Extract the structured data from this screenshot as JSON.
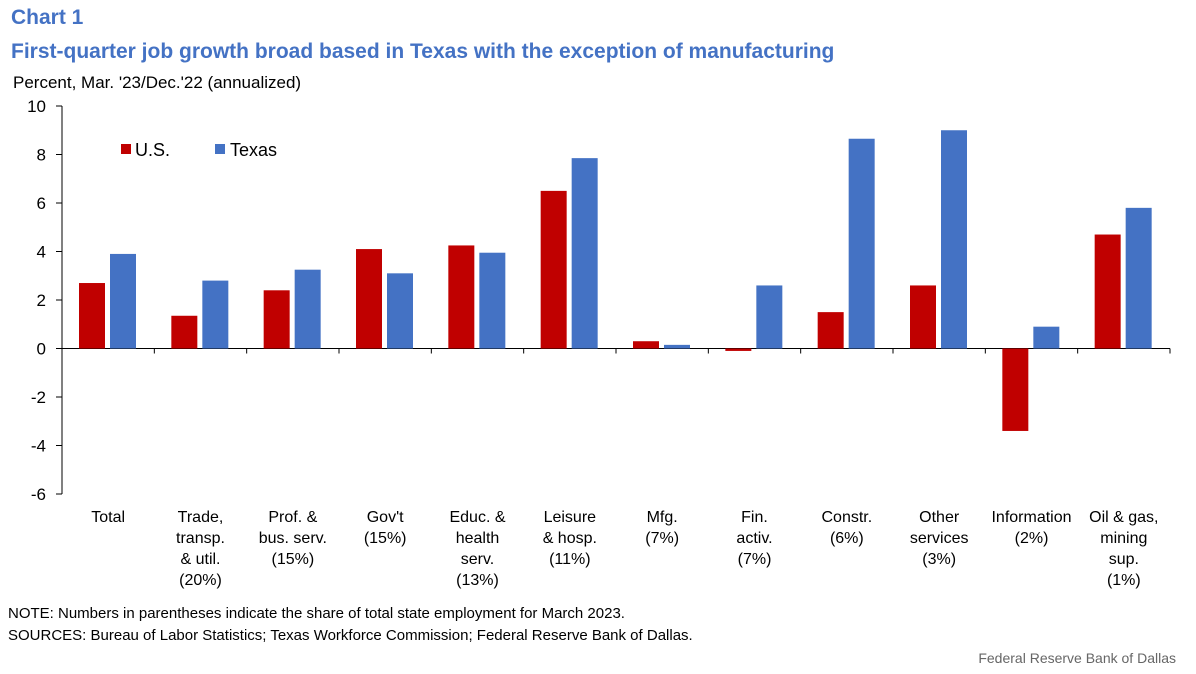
{
  "header": {
    "chart_label": "Chart 1",
    "title": "First-quarter job growth broad based in Texas with the exception of manufacturing",
    "units": "Percent, Mar. '23/Dec.'22 (annualized)"
  },
  "notes": {
    "note": "NOTE: Numbers in parentheses indicate the share of total state employment  for March 2023.",
    "sources": "SOURCES: Bureau of Labor Statistics; Texas Workforce Commission; Federal Reserve Bank of Dallas."
  },
  "credit": "Federal Reserve  Bank of Dallas",
  "chart_data": {
    "type": "bar",
    "categories": [
      [
        "Total"
      ],
      [
        "Trade,",
        "transp.",
        "& util.",
        "(20%)"
      ],
      [
        "Prof. &",
        "bus. serv.",
        "(15%)"
      ],
      [
        "Gov't",
        "(15%)"
      ],
      [
        "Educ. &",
        "health",
        "serv.",
        "(13%)"
      ],
      [
        "Leisure",
        "& hosp.",
        "(11%)"
      ],
      [
        "Mfg.",
        "(7%)"
      ],
      [
        "Fin.",
        "activ.",
        "(7%)"
      ],
      [
        "Constr.",
        "(6%)"
      ],
      [
        "Other",
        "services",
        "(3%)"
      ],
      [
        "Information",
        "(2%)"
      ],
      [
        "Oil & gas,",
        "mining",
        "sup.",
        "(1%)"
      ]
    ],
    "series": [
      {
        "name": "U.S.",
        "color": "#c00000",
        "values": [
          2.7,
          1.35,
          2.4,
          4.1,
          4.25,
          6.5,
          0.3,
          -0.1,
          1.5,
          2.6,
          -3.4,
          4.7
        ]
      },
      {
        "name": "Texas",
        "color": "#4472c4",
        "values": [
          3.9,
          2.8,
          3.25,
          3.1,
          3.95,
          7.85,
          0.15,
          2.6,
          8.65,
          9.0,
          0.9,
          5.8
        ]
      }
    ],
    "ylim": [
      -6,
      10
    ],
    "yticks": [
      10,
      8,
      6,
      4,
      2,
      0,
      -2,
      -4,
      -6
    ],
    "legend_position": "top-left",
    "grid": false
  }
}
